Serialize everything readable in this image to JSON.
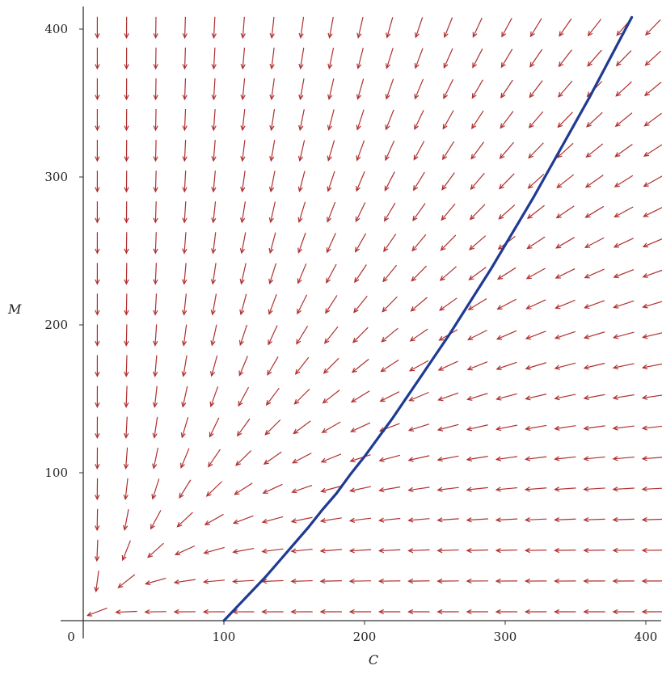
{
  "chart_data": {
    "type": "line",
    "subtype": "direction-field",
    "title": "",
    "xlabel": "C",
    "ylabel": "M",
    "xlim": [
      0,
      410
    ],
    "ylim": [
      0,
      412
    ],
    "x_ticks": [
      0,
      100,
      200,
      300,
      400
    ],
    "x_tick_labels": [
      "0",
      "100",
      "200",
      "300",
      "400"
    ],
    "y_ticks": [
      100,
      200,
      300,
      400
    ],
    "y_tick_labels": [
      "100",
      "200",
      "300",
      "400"
    ],
    "grid": false,
    "field": {
      "x_start": 0,
      "x_step": 20.8,
      "x_count": 20,
      "y_start": 0,
      "y_step": 20.8,
      "y_count": 20,
      "direction": "dC/dt = -C, dM/dt = -M^2/C (arrows point toward decreasing C and M)",
      "color": "#b03030"
    },
    "series": [
      {
        "color": "#1f3a93",
        "x": [
          100,
          110,
          120,
          130,
          140,
          150,
          160,
          170,
          180,
          190,
          200,
          210,
          220,
          230,
          240,
          250,
          260,
          270,
          280,
          290,
          300,
          310,
          320,
          330,
          340,
          350,
          360,
          370,
          380,
          390,
          400
        ],
        "y": [
          0,
          10,
          20,
          30,
          41,
          52,
          63,
          75,
          86,
          99,
          111,
          124,
          137,
          151,
          165,
          179,
          193,
          208,
          223,
          238,
          254,
          270,
          286,
          303,
          320,
          337,
          354,
          372,
          390,
          408,
          426
        ]
      }
    ]
  }
}
